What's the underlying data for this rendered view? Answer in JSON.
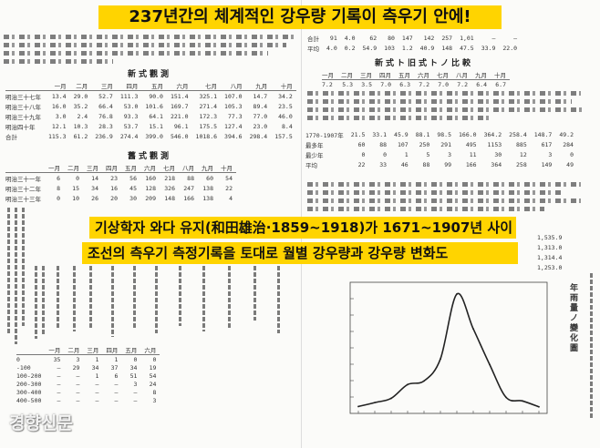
{
  "headline": "237년간의 체계적인 강우량 기록이 측우기 안에!",
  "caption": {
    "line1": "기상학자 와다 유지(和田雄治·1859~1918)가 1671~1907년 사이",
    "line2": "조선의 측우기 측정기록을 토대로 월별 강우량과 강우량 변화도"
  },
  "watermark": "경향신문",
  "left_page": {
    "table1_title": "新式觀測",
    "table1": {
      "headers": [
        "",
        "一月",
        "二月",
        "三月",
        "四月",
        "五月",
        "六月",
        "七月",
        "八月",
        "九月",
        "十月"
      ],
      "rows": [
        [
          "明治三十七年",
          "13.4",
          "29.0",
          "52.7",
          "111.3",
          "90.0",
          "151.4",
          "325.1",
          "107.0",
          "14.7",
          "34.2"
        ],
        [
          "明治三十八年",
          "16.0",
          "35.2",
          "66.4",
          "53.0",
          "101.6",
          "169.7",
          "271.4",
          "105.3",
          "89.4",
          "23.5"
        ],
        [
          "明治三十九年",
          "3.0",
          "2.4",
          "76.8",
          "93.3",
          "64.1",
          "221.0",
          "172.3",
          "77.3",
          "77.0",
          "46.0"
        ],
        [
          "明治四十年",
          "12.1",
          "10.3",
          "28.3",
          "53.7",
          "15.1",
          "96.1",
          "175.5",
          "127.4",
          "23.0",
          "8.4"
        ],
        [
          "合計",
          "115.3",
          "61.2",
          "236.9",
          "274.4",
          "399.0",
          "546.0",
          "1018.6",
          "394.6",
          "298.4",
          "157.5"
        ]
      ]
    },
    "table2_title": "舊式觀測",
    "table2": {
      "headers": [
        "",
        "一月",
        "二月",
        "三月",
        "四月",
        "五月",
        "六月",
        "七月",
        "八月",
        "九月",
        "十月"
      ],
      "rows": [
        [
          "明治三十一年",
          "6",
          "0",
          "14",
          "23",
          "56",
          "160",
          "218",
          "88",
          "60",
          "54"
        ],
        [
          "明治三十二年",
          "8",
          "15",
          "34",
          "16",
          "45",
          "128",
          "326",
          "247",
          "138",
          "22"
        ],
        [
          "明治三十三年",
          "0",
          "10",
          "26",
          "20",
          "30",
          "209",
          "148",
          "166",
          "138",
          "4"
        ]
      ]
    },
    "table3": {
      "headers": [
        "",
        "一月",
        "二月",
        "三月",
        "四月",
        "五月",
        "六月"
      ],
      "rows": [
        [
          "0",
          "35",
          "3",
          "1",
          "1",
          "0",
          "0"
        ],
        [
          "-100",
          "—",
          "29",
          "34",
          "37",
          "34",
          "19"
        ],
        [
          "100-200",
          "—",
          "—",
          "1",
          "6",
          "51",
          "54"
        ],
        [
          "200-300",
          "—",
          "—",
          "—",
          "—",
          "3",
          "24"
        ],
        [
          "300-400",
          "—",
          "—",
          "—",
          "—",
          "—",
          "8"
        ],
        [
          "400-500",
          "—",
          "—",
          "—",
          "—",
          "—",
          "3"
        ]
      ]
    }
  },
  "right_page": {
    "top_table": {
      "rows": [
        [
          "合計",
          "91",
          "4.0",
          "62",
          "80",
          "147",
          "142",
          "257",
          "1,01",
          "—",
          "—"
        ],
        [
          "平均",
          "4.0",
          "0.2",
          "54.9",
          "103",
          "1.2",
          "40.9",
          "148",
          "47.5",
          "33.9",
          "22.0"
        ]
      ]
    },
    "section_title": "新式ト旧式トノ比較",
    "compare_table": {
      "headers": [
        "一月",
        "二月",
        "三月",
        "四月",
        "五月",
        "六月",
        "七月",
        "八月",
        "九月",
        "十月"
      ],
      "rows": [
        [
          "7.2",
          "5.3",
          "3.5",
          "7.0",
          "6.3",
          "7.2",
          "7.0",
          "7.2",
          "6.4",
          "6.7"
        ]
      ]
    },
    "mid_table": {
      "rows": [
        [
          "1770-1907年",
          "21.5",
          "33.1",
          "45.9",
          "88.1",
          "98.5",
          "166.0",
          "364.2",
          "258.4",
          "148.7",
          "49.2"
        ],
        [
          "最多年",
          "60",
          "88",
          "107",
          "250",
          "291",
          "495",
          "1153",
          "885",
          "617",
          "284"
        ],
        [
          "最少年",
          "0",
          "0",
          "1",
          "5",
          "3",
          "11",
          "30",
          "12",
          "3",
          "0"
        ],
        [
          "平均",
          "22",
          "33",
          "46",
          "88",
          "99",
          "166",
          "364",
          "258",
          "149",
          "49"
        ]
      ]
    },
    "bottom_numbers": [
      "1,535.9",
      "1,313.0",
      "1,314.4",
      "1,253.0"
    ],
    "vertical_title": "年雨量ノ變化圖"
  },
  "chart_data": {
    "type": "line",
    "title": "",
    "xlabel": "",
    "ylabel": "",
    "x": [
      1,
      2,
      3,
      4,
      5,
      6,
      7,
      8,
      9,
      10,
      11,
      12
    ],
    "ylim": [
      0,
      400
    ],
    "series": [
      {
        "values": [
          21,
          33,
          46,
          88,
          99,
          166,
          364,
          258,
          149,
          49,
          38,
          20
        ]
      }
    ],
    "grid": false,
    "line_color": "#222222"
  }
}
